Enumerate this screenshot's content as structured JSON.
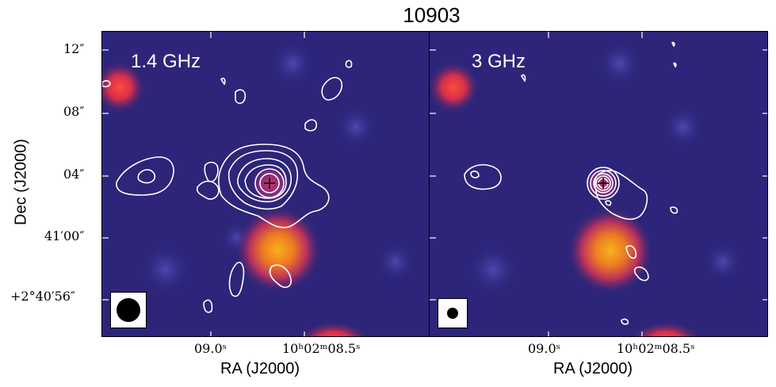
{
  "title": "10903",
  "panels": {
    "left": {
      "label": "1.4 GHz"
    },
    "right": {
      "label": "3 GHz"
    }
  },
  "axes": {
    "xlabel": "RA (J2000)",
    "ylabel": "Dec (J2000)",
    "y_ticks": [
      "12″",
      "08″",
      "04″",
      "41′00″",
      "+2°40′56″"
    ],
    "x_ticks_left": [
      "09.0ˢ",
      "10ʰ02ᵐ08.5ˢ"
    ],
    "x_ticks_right": [
      "09.0ˢ",
      "10ʰ02ᵐ08.5ˢ"
    ]
  },
  "colors": {
    "background": "#2a237a",
    "source_hot": "#f5a623",
    "source_red": "#e0303a",
    "contour": "#ffffff"
  }
}
